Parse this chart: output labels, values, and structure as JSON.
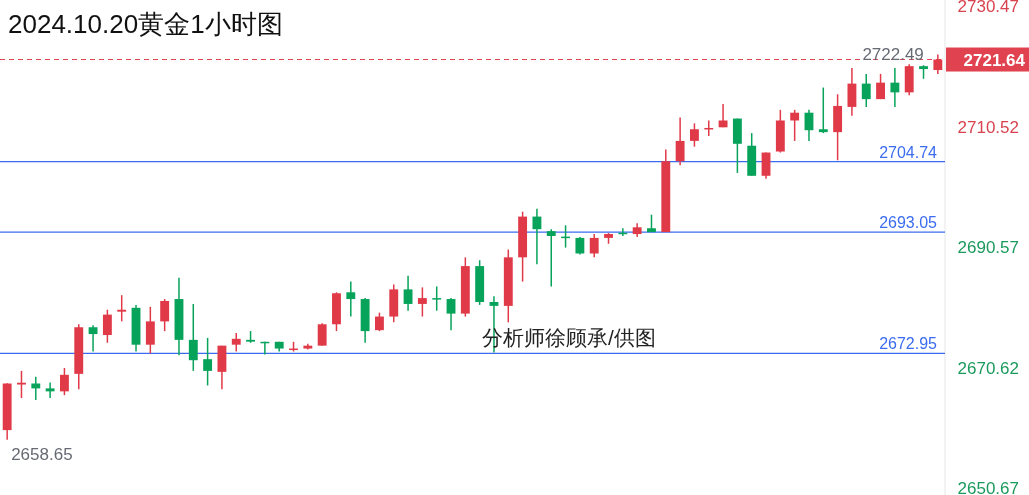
{
  "chart_data": {
    "type": "candlestick",
    "title": "2024.10.20黄金1小时图",
    "categories": [
      null,
      null,
      null,
      null,
      null,
      null,
      null,
      null,
      null,
      null,
      null,
      null,
      null,
      null,
      null,
      null,
      null,
      null,
      null,
      null,
      null,
      null,
      null,
      null,
      null,
      null,
      null,
      null,
      null,
      null,
      null,
      null,
      null,
      null,
      null,
      null,
      null,
      null,
      null,
      null,
      null,
      null,
      null,
      null,
      null,
      null,
      null,
      null,
      null,
      null,
      null,
      null,
      null,
      null,
      null,
      null,
      null,
      null,
      null,
      null,
      null,
      null,
      null,
      null,
      null,
      null
    ],
    "ohlc": [
      [
        2660.25,
        2668.0,
        2658.65,
        2667.97
      ],
      [
        2667.8,
        2670.06,
        2665.56,
        2668.1
      ],
      [
        2667.97,
        2669.09,
        2665.23,
        2667.16
      ],
      [
        2667.16,
        2668.12,
        2665.56,
        2666.67
      ],
      [
        2666.67,
        2670.54,
        2666.04,
        2669.41
      ],
      [
        2669.57,
        2677.78,
        2667.0,
        2677.29
      ],
      [
        2677.29,
        2677.61,
        2673.27,
        2676.16
      ],
      [
        2676.0,
        2680.19,
        2674.72,
        2679.38
      ],
      [
        2679.87,
        2682.6,
        2678.26,
        2680.19
      ],
      [
        2680.51,
        2680.99,
        2673.27,
        2674.4
      ],
      [
        2674.4,
        2680.67,
        2672.95,
        2678.26
      ],
      [
        2678.26,
        2681.96,
        2676.65,
        2681.64
      ],
      [
        2681.96,
        2685.49,
        2672.63,
        2675.2
      ],
      [
        2675.2,
        2681.15,
        2670.06,
        2671.83
      ],
      [
        2672.0,
        2675.53,
        2667.65,
        2670.06
      ],
      [
        2669.9,
        2674.24,
        2667.0,
        2674.24
      ],
      [
        2674.4,
        2676.33,
        2673.27,
        2675.37
      ],
      [
        2675.2,
        2676.65,
        2674.72,
        2674.9
      ],
      [
        2674.88,
        2674.88,
        2672.79,
        2674.72
      ],
      [
        2674.88,
        2674.88,
        2673.27,
        2673.76
      ],
      [
        2673.6,
        2674.88,
        2673.27,
        2673.76
      ],
      [
        2673.76,
        2674.56,
        2673.6,
        2674.24
      ],
      [
        2674.24,
        2677.94,
        2674.24,
        2677.78
      ],
      [
        2677.78,
        2683.08,
        2676.65,
        2682.92
      ],
      [
        2683.08,
        2684.85,
        2679.06,
        2681.96
      ],
      [
        2681.96,
        2682.12,
        2674.72,
        2676.65
      ],
      [
        2676.81,
        2679.71,
        2676.65,
        2679.06
      ],
      [
        2679.06,
        2684.37,
        2678.1,
        2683.56
      ],
      [
        2683.56,
        2685.82,
        2680.03,
        2681.15
      ],
      [
        2681.15,
        2683.89,
        2679.06,
        2682.12
      ],
      [
        2682.12,
        2684.05,
        2680.03,
        2681.96
      ],
      [
        2681.96,
        2682.12,
        2676.81,
        2679.55
      ],
      [
        2679.55,
        2688.87,
        2679.06,
        2687.42
      ],
      [
        2687.42,
        2688.39,
        2680.99,
        2681.47
      ],
      [
        2681.47,
        2682.44,
        2673.11,
        2680.83
      ],
      [
        2680.83,
        2690.16,
        2678.1,
        2688.87
      ],
      [
        2688.87,
        2696.43,
        2684.85,
        2695.62
      ],
      [
        2695.62,
        2696.91,
        2687.74,
        2693.53
      ],
      [
        2693.21,
        2693.53,
        2684.05,
        2692.41
      ],
      [
        2692.3,
        2694.18,
        2690.48,
        2692.2
      ],
      [
        2692.09,
        2692.25,
        2689.35,
        2689.51
      ],
      [
        2689.51,
        2692.73,
        2688.87,
        2692.09
      ],
      [
        2692.09,
        2692.9,
        2691.12,
        2692.73
      ],
      [
        2692.95,
        2693.69,
        2692.41,
        2692.89
      ],
      [
        2692.73,
        2694.5,
        2692.25,
        2693.85
      ],
      [
        2693.69,
        2695.94,
        2693.05,
        2693.05
      ],
      [
        2693.05,
        2706.72,
        2693.05,
        2704.79
      ],
      [
        2704.79,
        2712.02,
        2704.14,
        2708.16
      ],
      [
        2708.16,
        2711.06,
        2707.2,
        2710.09
      ],
      [
        2710.1,
        2711.54,
        2708.97,
        2710.3
      ],
      [
        2710.41,
        2714.27,
        2710.41,
        2711.54
      ],
      [
        2711.86,
        2711.86,
        2702.86,
        2707.68
      ],
      [
        2707.36,
        2709.45,
        2702.38,
        2702.38
      ],
      [
        2702.38,
        2706.23,
        2701.89,
        2706.23
      ],
      [
        2706.4,
        2713.3,
        2706.23,
        2711.54
      ],
      [
        2711.54,
        2713.3,
        2708.16,
        2712.83
      ],
      [
        2712.83,
        2713.3,
        2708.16,
        2709.93
      ],
      [
        2710.09,
        2717.0,
        2709.45,
        2709.61
      ],
      [
        2709.61,
        2715.88,
        2704.95,
        2713.95
      ],
      [
        2713.79,
        2720.22,
        2712.34,
        2717.65
      ],
      [
        2717.65,
        2719.26,
        2713.79,
        2715.08
      ],
      [
        2715.08,
        2719.26,
        2715.08,
        2717.81
      ],
      [
        2717.81,
        2720.22,
        2713.79,
        2716.2
      ],
      [
        2716.2,
        2720.86,
        2715.72,
        2720.54
      ],
      [
        2720.54,
        2720.7,
        2718.45,
        2720.06
      ],
      [
        2719.9,
        2722.49,
        2719.26,
        2721.64
      ]
    ],
    "ylim": [
      2649.5,
      2731.5
    ],
    "yticks": [
      2730.47,
      2710.52,
      2690.57,
      2670.62,
      2650.67
    ],
    "tick_labels": "y",
    "ref_lines": [
      {
        "axis": "y",
        "value": 2704.74,
        "label": "2704.74",
        "color": "#3b6cf0"
      },
      {
        "axis": "y",
        "value": 2693.05,
        "label": "2693.05",
        "color": "#3b6cf0"
      },
      {
        "axis": "y",
        "value": 2672.95,
        "label": "2672.95",
        "color": "#3b6cf0"
      },
      {
        "axis": "y",
        "value": 2721.64,
        "label": "2721.64",
        "color": "#e0434f",
        "line_style": "dashed"
      }
    ],
    "annotations": [
      "2722.49",
      "2658.65",
      "分析师徐顾承/供图"
    ]
  }
}
